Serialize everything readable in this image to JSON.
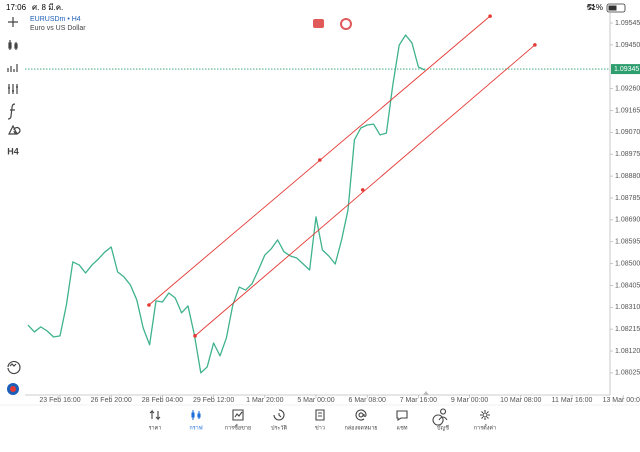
{
  "status_bar": {
    "time": "17:06",
    "date": "ศ. 8 มี.ค.",
    "battery": "51%"
  },
  "symbol": {
    "name": "EURUSDm • H4",
    "description": "Euro vs US Dollar"
  },
  "toolbar": {
    "timeframe": "H4"
  },
  "chart_data": {
    "type": "line",
    "color": "#3fb28e",
    "categories": [
      null,
      null,
      null,
      null,
      null,
      "23 Feb 16:00",
      null,
      null,
      null,
      null,
      null,
      null,
      null,
      "26 Feb 20:00",
      null,
      null,
      null,
      null,
      null,
      null,
      null,
      "28 Feb 04:00",
      null,
      null,
      null,
      null,
      null,
      null,
      null,
      "29 Feb 12:00",
      null,
      null,
      null,
      null,
      null,
      null,
      null,
      "1 Mar 20:00",
      null,
      null,
      null,
      null,
      null,
      null,
      null,
      "5 Mar 00:00",
      null,
      null,
      null,
      null,
      null,
      null,
      null,
      "6 Mar 08:00",
      null,
      null,
      null,
      null,
      null,
      null,
      null,
      "7 Mar 16:00",
      null,
      null,
      null,
      null,
      null,
      null,
      null,
      "9 Mar 00:00",
      null,
      null,
      null,
      null,
      null,
      null,
      null,
      "10 Mar 08:00",
      null,
      null,
      null,
      null,
      null,
      null,
      null,
      "11 Mar 16:00",
      null,
      null,
      null,
      null,
      null,
      null,
      null,
      "13 Mar 00:00"
    ],
    "values": [
      1.08233,
      1.08203,
      1.08225,
      1.08207,
      1.08181,
      1.08186,
      1.0832,
      1.08507,
      1.08494,
      1.08459,
      1.08494,
      1.0852,
      1.0855,
      1.08572,
      1.08464,
      1.08442,
      1.08407,
      1.08342,
      1.0822,
      1.08147,
      1.08338,
      1.08333,
      1.08372,
      1.08351,
      1.08286,
      1.08316,
      1.0819,
      1.08025,
      1.08051,
      1.08155,
      1.08099,
      1.08177,
      1.0832,
      1.08398,
      1.08385,
      1.08412,
      1.08472,
      1.08537,
      1.08564,
      1.08603,
      1.08551,
      1.08533,
      1.08524,
      1.08498,
      1.08472,
      1.08703,
      1.08559,
      1.08533,
      1.08498,
      1.08603,
      1.08733,
      1.09037,
      1.09089,
      1.09102,
      1.09106,
      1.09059,
      1.09067,
      1.09276,
      1.09449,
      1.09493,
      1.09458,
      1.09354,
      1.09341,
      null,
      null,
      null,
      null,
      null,
      null,
      null,
      null,
      null,
      null,
      null,
      null,
      null,
      null,
      null,
      null,
      null,
      null,
      null,
      null,
      null,
      null,
      null,
      null,
      null,
      null,
      null,
      null,
      null,
      null,
      null
    ],
    "ylim": [
      1.07929,
      1.09593
    ],
    "yticks": [
      1.08025,
      {
        "value": 1.0812,
        "label": "1.08120"
      },
      1.08215,
      {
        "value": 1.0831,
        "label": "1.08310"
      },
      1.08405,
      {
        "value": 1.085,
        "label": "1.08500"
      },
      1.08595,
      {
        "value": 1.0869,
        "label": "1.08690"
      },
      1.08785,
      {
        "value": 1.0888,
        "label": "1.08880"
      },
      1.08975,
      {
        "value": 1.0907,
        "label": "1.09070"
      },
      1.09165,
      {
        "value": 1.0926,
        "label": "1.09260"
      },
      {
        "value": 1.0945,
        "label": "1.09450"
      },
      1.09545
    ],
    "current_price": 1.09345,
    "current_price_color": "#2e9e6e",
    "channel_lines": [
      {
        "color": "#e53935",
        "points": [
          {
            "x": 18.9,
            "y": 1.0832
          },
          {
            "x": 45.6,
            "y": 1.0895
          },
          {
            "x": 72.2,
            "y": 1.09575
          }
        ]
      },
      {
        "color": "#e53935",
        "points": [
          {
            "x": 26.1,
            "y": 1.08186
          },
          {
            "x": 52.3,
            "y": 1.0882
          },
          {
            "x": 79.2,
            "y": 1.0945
          }
        ]
      }
    ]
  },
  "nav": {
    "active": 1,
    "items": [
      "ราคา",
      "กราฟ",
      "การซื้อขาย",
      "ประวัติ",
      "ข่าว",
      "กล่องจดหมาย",
      "แชท",
      "บัญชี",
      "การตั้งค่า"
    ]
  }
}
